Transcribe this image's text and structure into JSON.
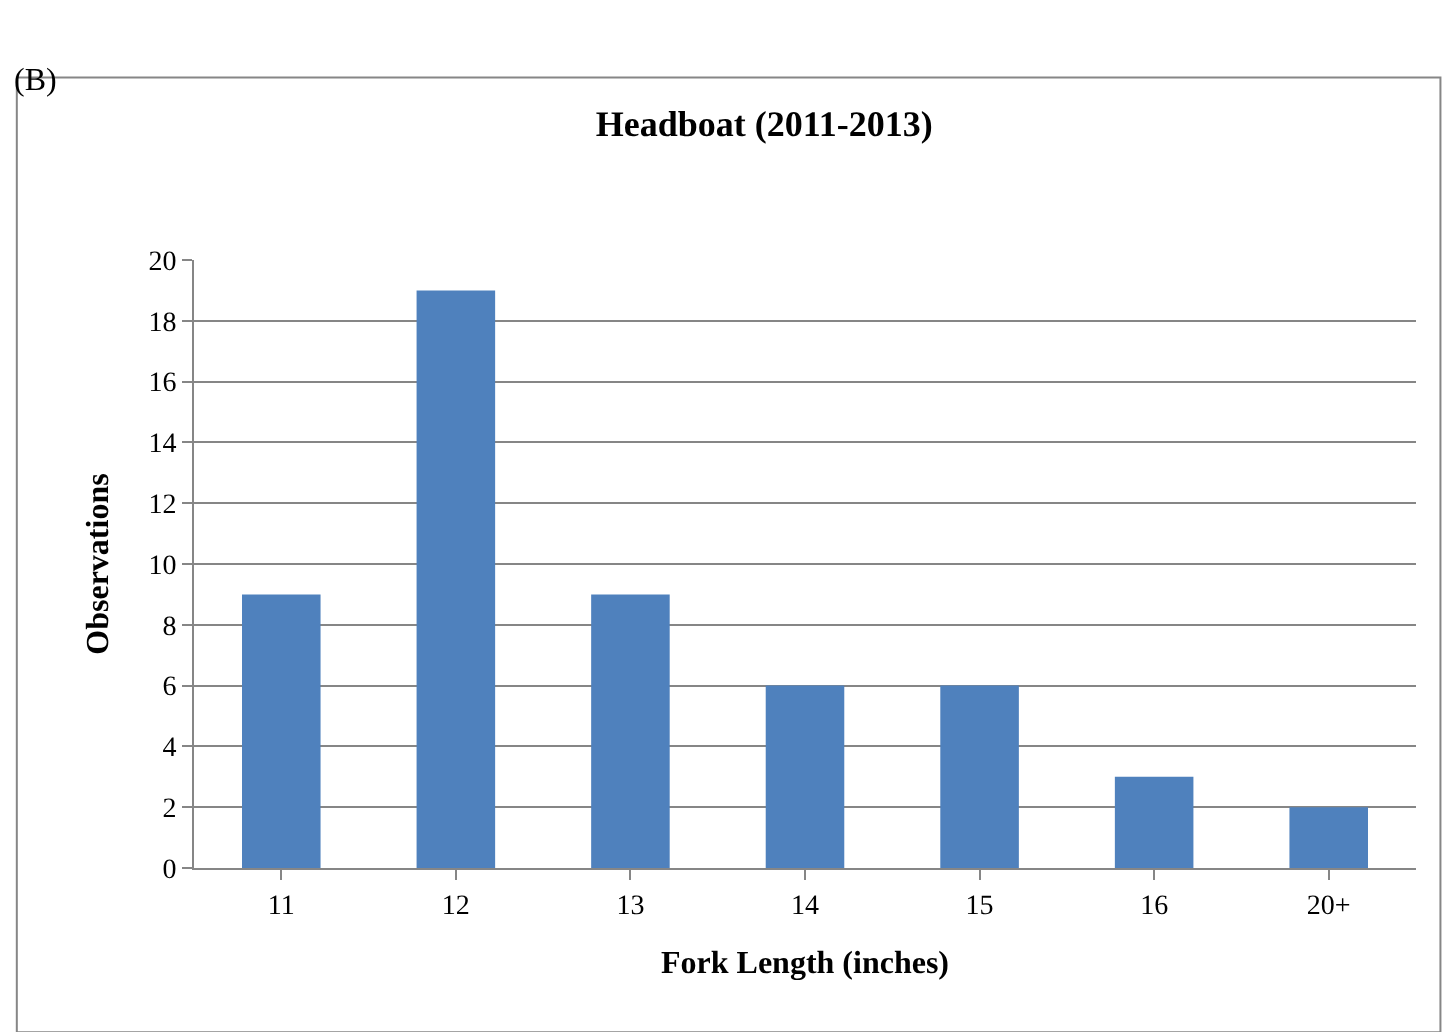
{
  "chart_data": {
    "type": "bar",
    "title": "Headboat (2011-2013)",
    "xlabel": "Fork Length (inches)",
    "ylabel": "Observations",
    "categories": [
      "11",
      "12",
      "13",
      "14",
      "15",
      "16",
      "20+"
    ],
    "values": [
      9,
      19,
      9,
      6,
      6,
      3,
      2
    ],
    "color": "#4f81bd",
    "ylim": [
      0,
      20
    ],
    "yticks": [
      0,
      2,
      4,
      6,
      8,
      10,
      12,
      14,
      16,
      18,
      20
    ],
    "grid": "y",
    "annotations": [
      "(B)"
    ]
  }
}
